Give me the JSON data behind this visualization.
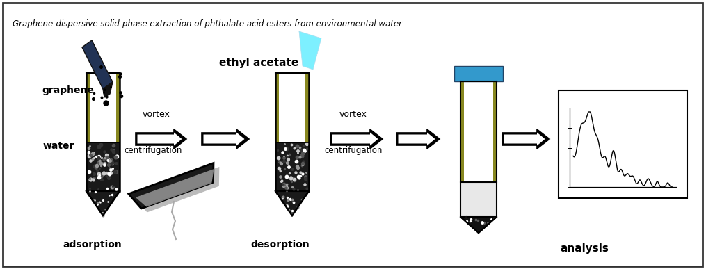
{
  "title": "Graphene-dispersive solid-phase extraction of phthalate acid esters from environmental water.",
  "title_fontsize": 8.5,
  "background_color": "#ffffff",
  "border_color": "#333333",
  "labels": {
    "graphene": "graphene",
    "water": "water",
    "adsorption": "adsorption",
    "ethyl_acetate": "ethyl acetate",
    "desorption": "desorption",
    "vortex1": "vortex",
    "centrifugation1": "centrifugation",
    "vortex2": "vortex",
    "centrifugation2": "centrifugation",
    "analysis": "analysis"
  },
  "blue_cap_color": "#3399cc",
  "yellow_strip": "#888820",
  "graphene_pen_blue": "#334488",
  "ethyl_acetate_cyan": "#66eeff"
}
